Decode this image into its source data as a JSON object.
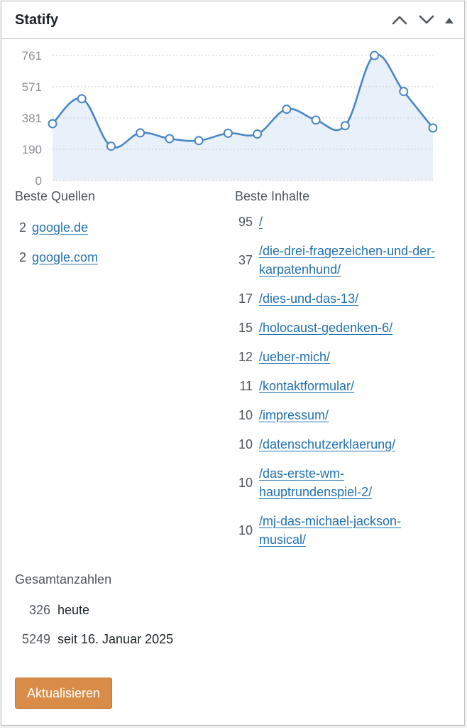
{
  "widget": {
    "title": "Statify",
    "controls": {
      "move_up": "chevron-up-icon",
      "move_down": "chevron-down-icon",
      "toggle": "caret-up-icon"
    }
  },
  "chart_data": {
    "type": "area",
    "title": "",
    "xlabel": "",
    "ylabel": "",
    "ylim": [
      0,
      761
    ],
    "yticks": [
      "761",
      "571",
      "381",
      "190",
      "0"
    ],
    "grid": true,
    "legend": "none",
    "colors": {
      "line": "#4a86c5",
      "fill": "#e8f0f9",
      "grid": "#c8c8c8"
    },
    "series": [
      {
        "values": [
          346,
          498,
          209,
          290,
          255,
          243,
          288,
          283,
          434,
          368,
          334,
          761,
          542,
          320
        ]
      }
    ]
  },
  "referrers": {
    "heading": "Beste Quellen",
    "items": [
      {
        "count": "2",
        "label": "google.de"
      },
      {
        "count": "2",
        "label": "google.com"
      }
    ]
  },
  "targets": {
    "heading": "Beste Inhalte",
    "items": [
      {
        "count": "95",
        "label": "/"
      },
      {
        "count": "37",
        "label": "/die-drei-fragezeichen-und-der-karpatenhund/"
      },
      {
        "count": "17",
        "label": "/dies-und-das-13/"
      },
      {
        "count": "15",
        "label": "/holocaust-gedenken-6/"
      },
      {
        "count": "12",
        "label": "/ueber-mich/"
      },
      {
        "count": "11",
        "label": "/kontaktformular/"
      },
      {
        "count": "10",
        "label": "/impressum/"
      },
      {
        "count": "10",
        "label": "/datenschutzerklaerung/"
      },
      {
        "count": "10",
        "label": "/das-erste-wm-hauptrundenspiel-2/"
      },
      {
        "count": "10",
        "label": "/mj-das-michael-jackson-musical/"
      }
    ]
  },
  "totals": {
    "heading": "Gesamtanzahlen",
    "items": [
      {
        "count": "326",
        "label": "heute"
      },
      {
        "count": "5249",
        "label": "seit 16. Januar 2025"
      }
    ]
  },
  "refresh_button": {
    "label": "Aktualisieren"
  }
}
